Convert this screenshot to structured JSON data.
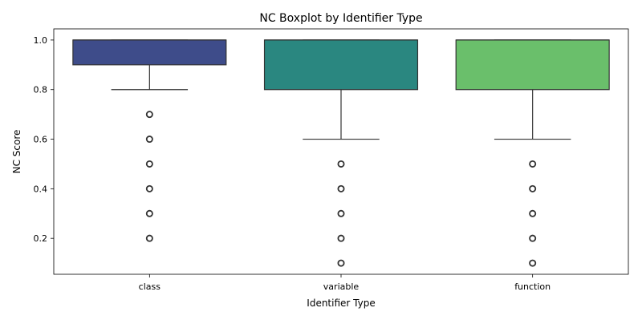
{
  "chart_data": {
    "type": "boxplot",
    "title": "NC Boxplot by Identifier Type",
    "xlabel": "Identifier Type",
    "ylabel": "NC Score",
    "ylim": [
      0.055,
      1.045
    ],
    "yticks": [
      0.2,
      0.4,
      0.6,
      0.8,
      1.0
    ],
    "ytick_labels": [
      "0.2",
      "0.4",
      "0.6",
      "0.8",
      "1.0"
    ],
    "grid": false,
    "categories": [
      "class",
      "variable",
      "function"
    ],
    "boxes": [
      {
        "category": "class",
        "color": "#3e4c8a",
        "whisker_low": 0.8,
        "q1": 0.9,
        "median": 1.0,
        "q3": 1.0,
        "whisker_high": 1.0,
        "outliers": [
          0.2,
          0.3,
          0.4,
          0.5,
          0.6,
          0.7
        ]
      },
      {
        "category": "variable",
        "color": "#2a8780",
        "whisker_low": 0.6,
        "q1": 0.8,
        "median": 1.0,
        "q3": 1.0,
        "whisker_high": 1.0,
        "outliers": [
          0.1,
          0.2,
          0.3,
          0.4,
          0.5
        ]
      },
      {
        "category": "function",
        "color": "#6abf6b",
        "whisker_low": 0.6,
        "q1": 0.8,
        "median": 1.0,
        "q3": 1.0,
        "whisker_high": 1.0,
        "outliers": [
          0.1,
          0.2,
          0.3,
          0.4,
          0.5
        ]
      }
    ]
  }
}
